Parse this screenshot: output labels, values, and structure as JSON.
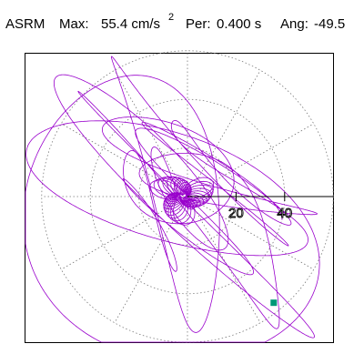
{
  "header": {
    "title": "ASRM",
    "max_label": "Max:",
    "max_value": "55.4 cm/s",
    "max_exponent": "2",
    "period_label": "Per:",
    "period_value": "0.400 s",
    "angle_label": "Ang:",
    "angle_value": "-49.5"
  },
  "chart_data": {
    "type": "scatter",
    "title": "ASRM",
    "max_acceleration": 55.4,
    "max_acceleration_unit": "cm/s^2",
    "period_s": 0.4,
    "angle_deg": -49.5,
    "radial_ticks": [
      20,
      40
    ],
    "radial_tick_labels": [
      "20",
      "40"
    ],
    "grid": true,
    "grid_style": "dotted-polar",
    "orbit_color": "#9900cc",
    "marker_color": "#009977",
    "peak_point": [
      35.5,
      -43.7
    ],
    "xlim": [
      -66,
      60
    ],
    "ylim": [
      -60,
      60
    ]
  }
}
